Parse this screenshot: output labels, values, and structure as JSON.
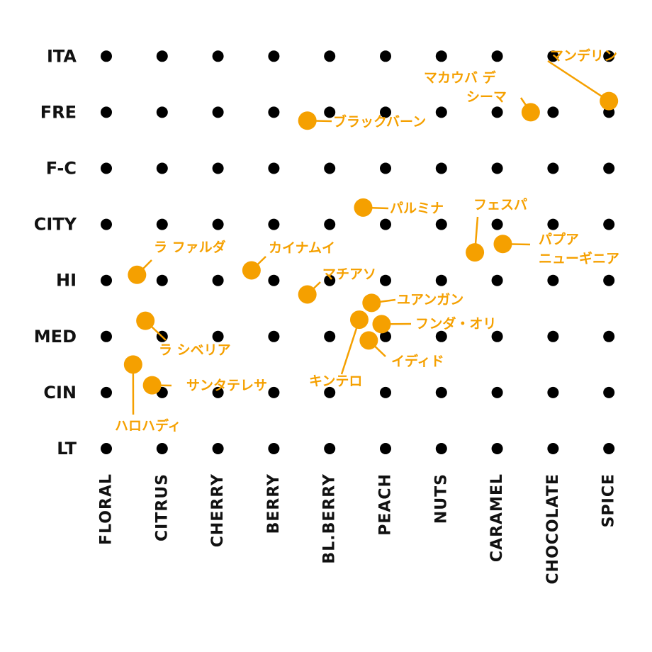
{
  "colors": {
    "accent": "#F5A000",
    "grid_dot": "#000000"
  },
  "chart_data": {
    "type": "scatter",
    "grid": true,
    "x_categories": [
      "FLORAL",
      "CITRUS",
      "CHERRY",
      "BERRY",
      "BL.BERRY",
      "PEACH",
      "NUTS",
      "CARAMEL",
      "CHOCOLATE",
      "SPICE"
    ],
    "y_categories": [
      "LT",
      "CIN",
      "MED",
      "HI",
      "CITY",
      "F-C",
      "FRE",
      "ITA"
    ],
    "points": [
      {
        "label": [
          "マンデリン"
        ],
        "x": 9.0,
        "y": 6.2
      },
      {
        "label": [
          "マカウバ デ",
          "シーマ"
        ],
        "x": 7.6,
        "y": 6.0
      },
      {
        "label": [
          "ブラックバーン"
        ],
        "x": 3.6,
        "y": 5.85
      },
      {
        "label": [
          "パルミナ"
        ],
        "x": 4.6,
        "y": 4.3
      },
      {
        "label": [
          "フェスパ"
        ],
        "x": 6.6,
        "y": 3.5
      },
      {
        "label": [
          "パプア",
          "ニューギニア"
        ],
        "x": 7.1,
        "y": 3.65
      },
      {
        "label": [
          "ラ ファルダ"
        ],
        "x": 0.55,
        "y": 3.1
      },
      {
        "label": [
          "カイナムイ"
        ],
        "x": 2.6,
        "y": 3.18
      },
      {
        "label": [
          "マチアソ"
        ],
        "x": 3.6,
        "y": 2.75
      },
      {
        "label": [
          "ユアンガン"
        ],
        "x": 4.75,
        "y": 2.6
      },
      {
        "label": [
          "フンダ・オリ"
        ],
        "x": 4.93,
        "y": 2.22
      },
      {
        "label": [
          "キンテロ"
        ],
        "x": 4.53,
        "y": 2.3
      },
      {
        "label": [
          "イディド"
        ],
        "x": 4.7,
        "y": 1.93
      },
      {
        "label": [
          "ラ シベリア"
        ],
        "x": 0.7,
        "y": 2.28
      },
      {
        "label": [
          "ハロハディ"
        ],
        "x": 0.48,
        "y": 1.5
      },
      {
        "label": [
          "サンタテレサ"
        ],
        "x": 0.82,
        "y": 1.13
      }
    ]
  }
}
